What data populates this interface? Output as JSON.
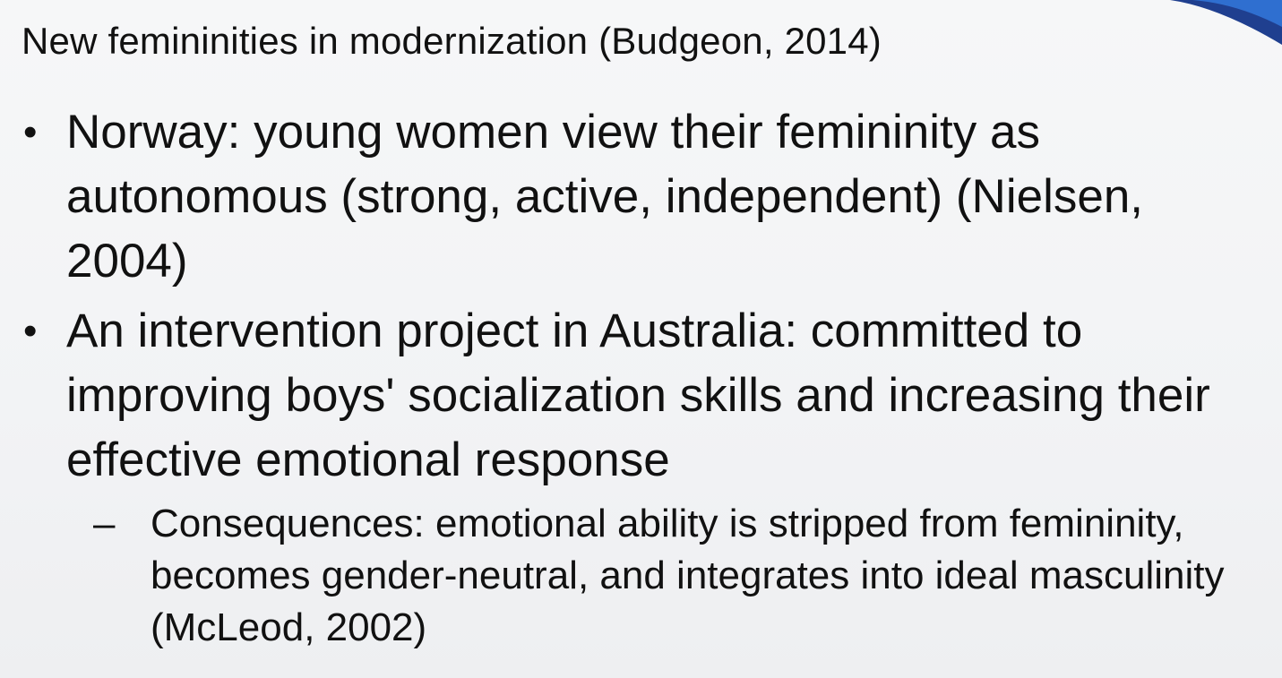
{
  "slide": {
    "title": "New femininities in modernization  (Budgeon, 2014)",
    "bullets": [
      {
        "marker": "•",
        "text": "Norway: young women view their femininity as autonomous (strong, active, independent) (Nielsen, 2004)"
      },
      {
        "marker": "•",
        "text": "An intervention project in Australia: committed to improving boys' socialization skills and increasing their effective emotional response",
        "sub_bullets": [
          {
            "marker": "–",
            "text": "Consequences: emotional ability is stripped from femininity, becomes gender-neutral, and integrates into ideal masculinity (McLeod, 2002)"
          }
        ]
      }
    ]
  },
  "colors": {
    "accent_dark_blue": "#1f3f8f",
    "accent_light_blue": "#2f6fd0",
    "background": "#f3f4f6",
    "text": "#111111"
  }
}
